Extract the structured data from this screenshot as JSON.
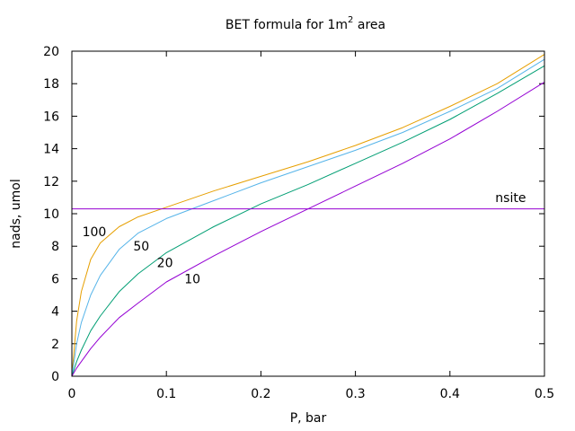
{
  "chart_data": {
    "type": "line",
    "title": "BET formula for 1m",
    "title_superscript": "2",
    "title_suffix": " area",
    "xlabel": "P, bar",
    "ylabel": "nads, umol",
    "xlim": [
      0,
      0.5
    ],
    "ylim": [
      0,
      20
    ],
    "xticks": [
      0,
      0.1,
      0.2,
      0.3,
      0.4,
      0.5
    ],
    "xtick_labels": [
      "0",
      "0.1",
      "0.2",
      "0.3",
      "0.4",
      "0.5"
    ],
    "yticks": [
      0,
      2,
      4,
      6,
      8,
      10,
      12,
      14,
      16,
      18,
      20
    ],
    "ytick_labels": [
      "0",
      "2",
      "4",
      "6",
      "8",
      "10",
      "12",
      "14",
      "16",
      "18",
      "20"
    ],
    "grid": false,
    "series": [
      {
        "name": "100",
        "color": "#e69f00",
        "x": [
          0,
          0.005,
          0.01,
          0.02,
          0.03,
          0.05,
          0.07,
          0.1,
          0.15,
          0.2,
          0.25,
          0.3,
          0.35,
          0.4,
          0.45,
          0.5
        ],
        "values": [
          0,
          3.4,
          5.2,
          7.2,
          8.2,
          9.2,
          9.8,
          10.4,
          11.4,
          12.3,
          13.2,
          14.2,
          15.3,
          16.6,
          18.0,
          19.8
        ]
      },
      {
        "name": "50",
        "color": "#56b4e9",
        "x": [
          0,
          0.005,
          0.01,
          0.02,
          0.03,
          0.05,
          0.07,
          0.1,
          0.15,
          0.2,
          0.25,
          0.3,
          0.35,
          0.4,
          0.45,
          0.5
        ],
        "values": [
          0,
          2.0,
          3.3,
          5.0,
          6.2,
          7.8,
          8.8,
          9.7,
          10.8,
          11.9,
          12.9,
          13.9,
          15.0,
          16.3,
          17.7,
          19.5
        ]
      },
      {
        "name": "20",
        "color": "#009e73",
        "x": [
          0,
          0.005,
          0.01,
          0.02,
          0.03,
          0.05,
          0.07,
          0.1,
          0.15,
          0.2,
          0.25,
          0.3,
          0.35,
          0.4,
          0.45,
          0.5
        ],
        "values": [
          0,
          0.9,
          1.6,
          2.8,
          3.7,
          5.2,
          6.3,
          7.6,
          9.2,
          10.6,
          11.8,
          13.1,
          14.4,
          15.8,
          17.4,
          19.1
        ]
      },
      {
        "name": "10",
        "color": "#9400d3",
        "x": [
          0,
          0.005,
          0.01,
          0.02,
          0.03,
          0.05,
          0.07,
          0.1,
          0.15,
          0.2,
          0.25,
          0.3,
          0.35,
          0.4,
          0.45,
          0.5
        ],
        "values": [
          0,
          0.5,
          0.9,
          1.7,
          2.4,
          3.6,
          4.5,
          5.8,
          7.4,
          8.9,
          10.3,
          11.7,
          13.1,
          14.6,
          16.3,
          18.1
        ]
      },
      {
        "name": "nsite",
        "color": "#9400d3",
        "x": [
          0,
          0.5
        ],
        "values": [
          10.3,
          10.3
        ]
      }
    ],
    "annotations": [
      {
        "text": "100",
        "x": 0.011,
        "y": 8.9
      },
      {
        "text": "50",
        "x": 0.065,
        "y": 8.0
      },
      {
        "text": "20",
        "x": 0.09,
        "y": 7.0
      },
      {
        "text": "10",
        "x": 0.119,
        "y": 6.0
      },
      {
        "text": "nsite",
        "x": 0.448,
        "y": 11.0
      }
    ]
  }
}
